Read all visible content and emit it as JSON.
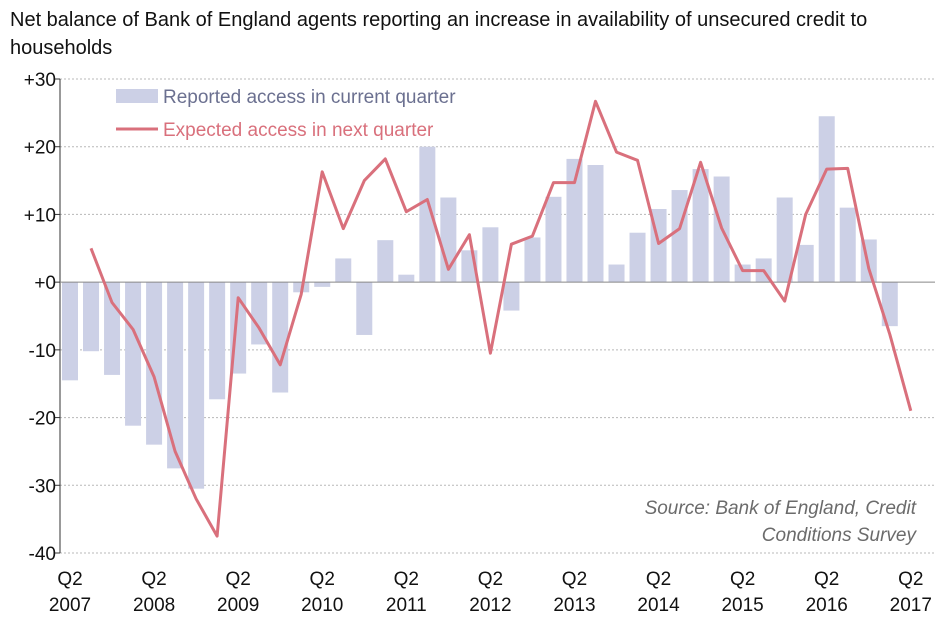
{
  "chart_data": {
    "type": "bar+line",
    "title": "Net balance of Bank of England agents reporting an increase in availability of unsecured credit to households",
    "ylim": [
      -40,
      30
    ],
    "yticks": [
      {
        "value": 30,
        "label": "+30"
      },
      {
        "value": 20,
        "label": "+20"
      },
      {
        "value": 10,
        "label": "+10"
      },
      {
        "value": 0,
        "label": "+0"
      },
      {
        "value": -10,
        "label": "-10"
      },
      {
        "value": -20,
        "label": "-20"
      },
      {
        "value": -30,
        "label": "-30"
      },
      {
        "value": -40,
        "label": "-40"
      }
    ],
    "grid": true,
    "legend_placement": "top-left",
    "xticks": [
      {
        "q": "Q2",
        "year": "2007",
        "index": 0
      },
      {
        "q": "Q2",
        "year": "2008",
        "index": 4
      },
      {
        "q": "Q2",
        "year": "2009",
        "index": 8
      },
      {
        "q": "Q2",
        "year": "2010",
        "index": 12
      },
      {
        "q": "Q2",
        "year": "2011",
        "index": 16
      },
      {
        "q": "Q2",
        "year": "2012",
        "index": 20
      },
      {
        "q": "Q2",
        "year": "2013",
        "index": 24
      },
      {
        "q": "Q2",
        "year": "2014",
        "index": 28
      },
      {
        "q": "Q2",
        "year": "2015",
        "index": 32
      },
      {
        "q": "Q2",
        "year": "2016",
        "index": 36
      },
      {
        "q": "Q2",
        "year": "2017",
        "index": 40
      }
    ],
    "categories": [
      "2007 Q2",
      "2007 Q3",
      "2007 Q4",
      "2008 Q1",
      "2008 Q2",
      "2008 Q3",
      "2008 Q4",
      "2009 Q1",
      "2009 Q2",
      "2009 Q3",
      "2009 Q4",
      "2010 Q1",
      "2010 Q2",
      "2010 Q3",
      "2010 Q4",
      "2011 Q1",
      "2011 Q2",
      "2011 Q3",
      "2011 Q4",
      "2012 Q1",
      "2012 Q2",
      "2012 Q3",
      "2012 Q4",
      "2013 Q1",
      "2013 Q2",
      "2013 Q3",
      "2013 Q4",
      "2014 Q1",
      "2014 Q2",
      "2014 Q3",
      "2014 Q4",
      "2015 Q1",
      "2015 Q2",
      "2015 Q3",
      "2015 Q4",
      "2016 Q1",
      "2016 Q2",
      "2016 Q3",
      "2016 Q4",
      "2017 Q1",
      "2017 Q2"
    ],
    "series": [
      {
        "name": "Reported access in current quarter",
        "type": "bar",
        "color": "#ccd0e6",
        "values": [
          -14.5,
          -10.2,
          -13.7,
          -21.2,
          -24,
          -27.5,
          -30.5,
          -17.3,
          -13.5,
          -9.2,
          -16.3,
          -1.5,
          -0.7,
          3.5,
          -7.8,
          6.2,
          1.1,
          20,
          12.5,
          4.7,
          8.1,
          -4.2,
          6.6,
          12.6,
          18.2,
          17.3,
          2.6,
          7.3,
          10.8,
          13.6,
          16.7,
          15.6,
          2.6,
          3.5,
          12.5,
          5.5,
          24.5,
          11,
          6.3,
          -6.5,
          0
        ]
      },
      {
        "name": "Expected access in next quarter",
        "type": "line",
        "color": "#d9707c",
        "values": [
          null,
          5,
          -3,
          -7,
          -14,
          -25,
          -32,
          -37.5,
          -2.3,
          -6.8,
          -12.2,
          -1.8,
          16.3,
          7.9,
          15,
          18.2,
          10.4,
          12.2,
          1.9,
          7,
          -10.5,
          5.6,
          6.8,
          14.7,
          14.7,
          26.7,
          19.2,
          18,
          5.7,
          7.9,
          17.7,
          8,
          1.7,
          1.7,
          -2.8,
          10,
          16.7,
          16.8,
          2,
          -7.7,
          -19
        ]
      }
    ],
    "source": [
      "Source: Bank of England, Credit",
      "Conditions Survey"
    ]
  }
}
